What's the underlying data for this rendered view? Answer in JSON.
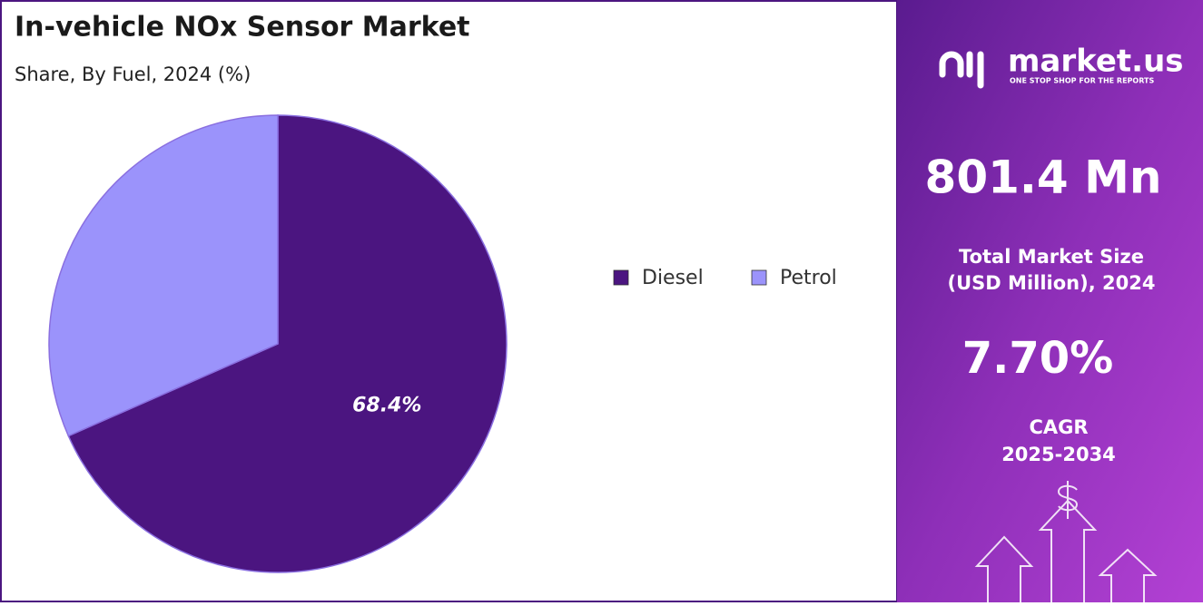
{
  "chart_data": {
    "type": "pie",
    "title": "In-vehicle NOx Sensor Market",
    "subtitle": "Share, By Fuel, 2024 (%)",
    "categories": [
      "Diesel",
      "Petrol"
    ],
    "values": [
      68.4,
      31.6
    ],
    "value_labels": [
      "68.4%",
      null
    ],
    "colors": [
      "#4b1580",
      "#9b93fb"
    ],
    "legend": "right"
  },
  "panel": {
    "logo": "market.us",
    "tagline": "ONE STOP SHOP FOR THE REPORTS",
    "market_size": "801.4 Mn",
    "market_size_label": [
      "Total Market Size",
      "(USD Million), 2024"
    ],
    "cagr": "7.70%",
    "cagr_label": [
      "CAGR",
      "2025-2034"
    ]
  }
}
